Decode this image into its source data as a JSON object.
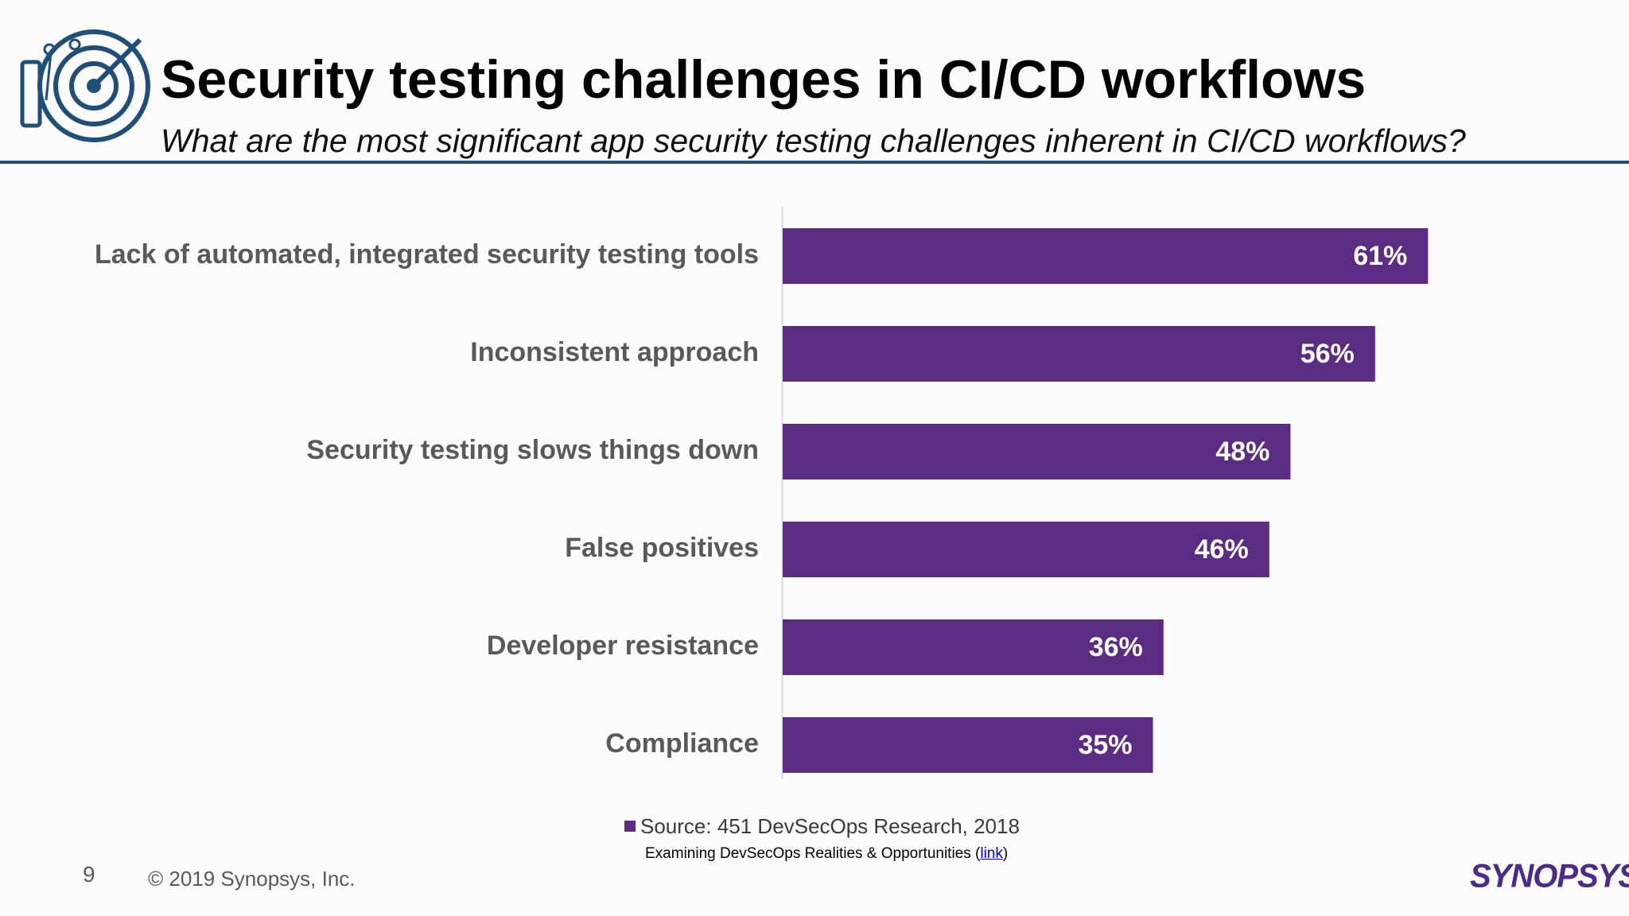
{
  "slide": {
    "title": "Security testing challenges in CI/CD workflows",
    "subtitle": "What are the most significant app security testing challenges inherent in CI/CD workflows?",
    "page_number": "9",
    "copyright": "© 2019 Synopsys, Inc.",
    "brand": "SYNOPSYS",
    "brand_mark": "®",
    "source_note": "Examining DevSecOps Realities & Opportunities",
    "source_link": "link"
  },
  "colors": {
    "bar": "#5a2d82",
    "rule": "#1f4e79",
    "icon": "#1f4e79",
    "axis": "#d9d9d9"
  },
  "icons": {
    "header_icon": "radar-target-icon"
  },
  "chart_data": {
    "type": "bar",
    "orientation": "horizontal",
    "categories": [
      "Lack of automated, integrated security testing tools",
      "Inconsistent approach",
      "Security testing slows things down",
      "False positives",
      "Developer resistance",
      "Compliance"
    ],
    "series": [
      {
        "name": "Source: 451 DevSecOps Research, 2018",
        "values": [
          61,
          56,
          48,
          46,
          36,
          35
        ]
      }
    ],
    "data_labels": [
      "61%",
      "56%",
      "48%",
      "46%",
      "36%",
      "35%"
    ],
    "value_unit": "%",
    "legend_position": "bottom",
    "grid": false
  }
}
